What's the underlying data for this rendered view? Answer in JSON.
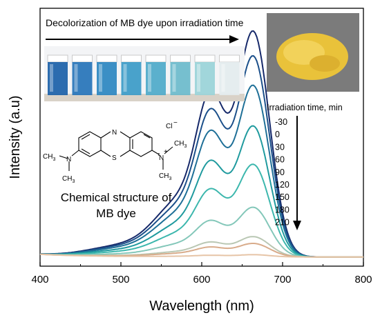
{
  "chart_data": {
    "type": "line",
    "xlabel": "Wavelength (nm)",
    "ylabel": "Intensity (a.u)",
    "xlim": [
      400,
      800
    ],
    "x_ticks": [
      "400",
      "500",
      "600",
      "700",
      "800"
    ],
    "grid": false,
    "legend_title": "Irradiation time, min",
    "legend_placement": "right",
    "series": [
      {
        "name": "-30",
        "color": "#16296a",
        "peak": 1.0,
        "shoulder": 0.66
      },
      {
        "name": "0",
        "color": "#1b4f8a",
        "peak": 0.89,
        "shoulder": 0.6
      },
      {
        "name": "30",
        "color": "#1e6f97",
        "peak": 0.76,
        "shoulder": 0.51
      },
      {
        "name": "60",
        "color": "#1f9a9e",
        "peak": 0.58,
        "shoulder": 0.41
      },
      {
        "name": "90",
        "color": "#3cb7ad",
        "peak": 0.41,
        "shoulder": 0.3
      },
      {
        "name": "120",
        "color": "#83c7b9",
        "peak": 0.22,
        "shoulder": 0.17
      },
      {
        "name": "150",
        "color": "#b9c7b3",
        "peak": 0.09,
        "shoulder": 0.08
      },
      {
        "name": "180",
        "color": "#d8ab8a",
        "peak": 0.06,
        "shoulder": 0.05
      },
      {
        "name": "210",
        "color": "#e6c4a6",
        "peak": 0.01,
        "shoulder": 0.01
      }
    ],
    "annotations": {
      "arrow_text": "Decolorization of MB dye upon irradiation time",
      "structure_caption_line1": "Chemical structure of",
      "structure_caption_line2": "MB dye"
    }
  },
  "chemistry": {
    "n_label": "N",
    "s_label": "S",
    "n_left": "N",
    "n_right": "N",
    "plus": "+",
    "ch3_a": "CH",
    "ch3_sub": "3",
    "cl": "Cl",
    "cl_minus": "−"
  },
  "vials": {
    "colors": [
      "#1b5fa8",
      "#2673b8",
      "#2b86c0",
      "#3b9ac7",
      "#4ea9c9",
      "#6bbacb",
      "#9ad3d8",
      "#e4ecee"
    ]
  },
  "powder": {
    "color": "#e9c23a",
    "background": "#7b7b7b"
  }
}
